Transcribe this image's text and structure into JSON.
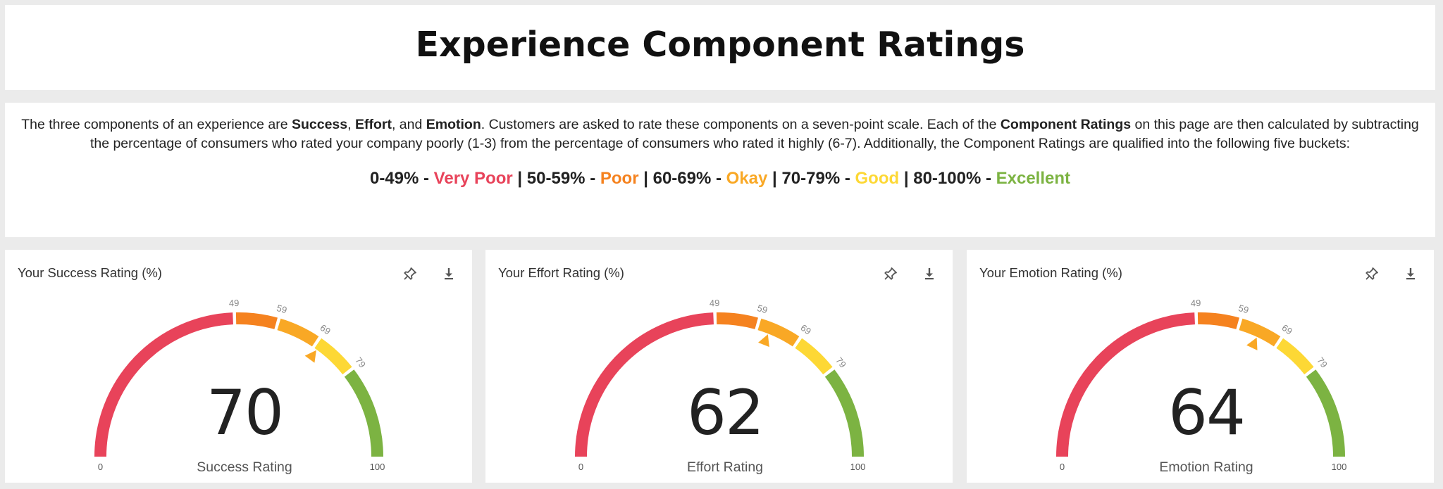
{
  "title": "Experience Component Ratings",
  "description": {
    "p1": "The three components of an experience are ",
    "success": "Success",
    "p2": ", ",
    "effort": "Effort",
    "p3": ", and ",
    "emotion": "Emotion",
    "p4": ". Customers are asked to rate these components on a seven-point scale. Each of the ",
    "component_ratings": "Component Ratings",
    "p5": " on this page are then calculated by subtracting the percentage of consumers who rated your company poorly (1-3) from the percentage of consumers who rated it highly (6-7). Additionally, the Component Ratings are qualified into the following five buckets:"
  },
  "buckets": [
    {
      "range": "0-49% - ",
      "label": "Very Poor",
      "color": "#e8435a"
    },
    {
      "range": "50-59% - ",
      "label": "Poor",
      "color": "#f5821f"
    },
    {
      "range": "60-69% - ",
      "label": "Okay",
      "color": "#f9a825"
    },
    {
      "range": "70-79% - ",
      "label": "Good",
      "color": "#fdd835"
    },
    {
      "range": "80-100% - ",
      "label": "Excellent",
      "color": "#7cb342"
    }
  ],
  "bucket_separator": " | ",
  "gauge_scale": {
    "min": 0,
    "max": 100,
    "min_label": "0",
    "max_label": "100",
    "thresholds": [
      {
        "value": 49,
        "label": "49"
      },
      {
        "value": 59,
        "label": "59"
      },
      {
        "value": 69,
        "label": "69"
      },
      {
        "value": 79,
        "label": "79"
      }
    ],
    "band_colors": [
      "#e8435a",
      "#f5821f",
      "#f9a825",
      "#fdd835",
      "#7cb342"
    ],
    "marker_color": "#f9a825"
  },
  "cards": {
    "success": {
      "title": "Your Success Rating (%)",
      "value": 70,
      "value_text": "70",
      "label": "Success Rating",
      "pin_icon": "pin-icon",
      "download_icon": "download-icon"
    },
    "effort": {
      "title": "Your Effort Rating (%)",
      "value": 62,
      "value_text": "62",
      "label": "Effort Rating",
      "pin_icon": "pin-icon",
      "download_icon": "download-icon"
    },
    "emotion": {
      "title": "Your Emotion Rating (%)",
      "value": 64,
      "value_text": "64",
      "label": "Emotion Rating",
      "pin_icon": "pin-icon",
      "download_icon": "download-icon"
    }
  }
}
